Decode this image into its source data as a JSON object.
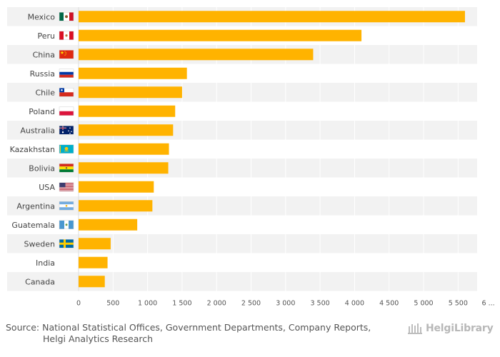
{
  "chart_data": {
    "type": "bar",
    "orientation": "horizontal",
    "title": "",
    "xlabel": "",
    "ylabel": "",
    "xlim": [
      0,
      6000
    ],
    "xticks": [
      "0",
      "500",
      "1 000",
      "1 500",
      "2 000",
      "2 500",
      "3 000",
      "3 500",
      "4 000",
      "4 500",
      "5 000",
      "5 500",
      "6 ..."
    ],
    "categories": [
      "Mexico",
      "Peru",
      "China",
      "Russia",
      "Chile",
      "Poland",
      "Australia",
      "Kazakhstan",
      "Bolivia",
      "USA",
      "Argentina",
      "Guatemala",
      "Sweden",
      "India",
      "Canada"
    ],
    "values": [
      5600,
      4100,
      3400,
      1570,
      1500,
      1400,
      1370,
      1310,
      1300,
      1090,
      1070,
      850,
      465,
      420,
      380
    ],
    "bar_color": "#ffb300",
    "band_color": "#f2f2f2"
  },
  "footer": {
    "source_line1": "Source: National Statistical Offices, Government Departments, Company Reports,",
    "source_line2": "Helgi Analytics Research",
    "brand": "HelgiLibrary"
  }
}
